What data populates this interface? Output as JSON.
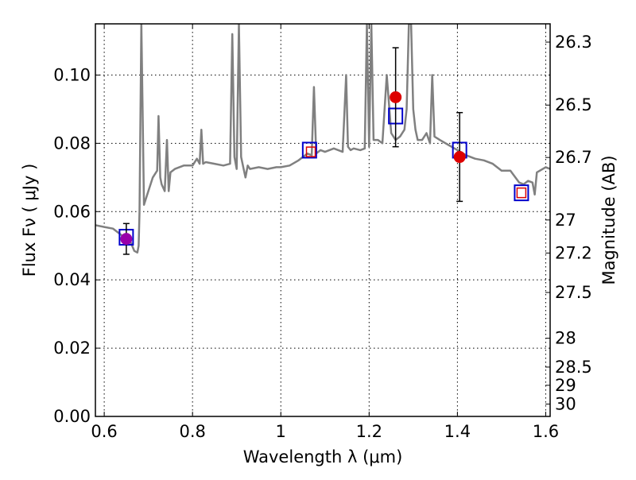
{
  "chart_data": {
    "type": "line",
    "xlabel": "Wavelength  λ (μm)",
    "ylabel": "Flux  Fν  ( μJy )",
    "y2label": "Magnitude (AB)",
    "xlim": [
      0.58,
      1.61
    ],
    "ylim": [
      0.0,
      0.115
    ],
    "x_ticks": [
      0.6,
      0.8,
      1.0,
      1.2,
      1.4,
      1.6
    ],
    "x_tick_labels": [
      "0.6",
      "0.8",
      "1",
      "1.2",
      "1.4",
      "1.6"
    ],
    "y_ticks": [
      0.0,
      0.02,
      0.04,
      0.06,
      0.08,
      0.1
    ],
    "y_tick_labels": [
      "0.00",
      "0.02",
      "0.04",
      "0.06",
      "0.08",
      "0.10"
    ],
    "mag_ticks": [
      26.3,
      26.5,
      26.7,
      27,
      27.2,
      27.5,
      28,
      28.5,
      29,
      30
    ],
    "mag_tick_labels": [
      "26.3",
      "26.5",
      "26.7",
      "27",
      "27.2",
      "27.5",
      "28",
      "28.5",
      "29",
      "30"
    ],
    "grid": true,
    "colors": {
      "model": "#808080",
      "observed": "#dd0000",
      "model_flux_box": "#0000cc",
      "predicted_box": "#dd0000",
      "error_bar": "#000000",
      "overlap_marker": "#9900aa"
    },
    "series": [
      {
        "kind": "model_spectrum",
        "x": [
          0.58,
          0.6,
          0.62,
          0.64,
          0.66,
          0.668,
          0.675,
          0.678,
          0.68,
          0.684,
          0.69,
          0.7,
          0.71,
          0.72,
          0.723,
          0.727,
          0.73,
          0.737,
          0.742,
          0.746,
          0.75,
          0.76,
          0.78,
          0.8,
          0.81,
          0.816,
          0.82,
          0.824,
          0.83,
          0.85,
          0.87,
          0.885,
          0.89,
          0.895,
          0.9,
          0.905,
          0.91,
          0.915,
          0.92,
          0.925,
          0.93,
          0.95,
          0.97,
          0.99,
          1.0,
          1.02,
          1.04,
          1.06,
          1.07,
          1.075,
          1.08,
          1.09,
          1.1,
          1.12,
          1.14,
          1.148,
          1.152,
          1.158,
          1.165,
          1.18,
          1.19,
          1.195,
          1.2,
          1.205,
          1.21,
          1.22,
          1.23,
          1.24,
          1.25,
          1.26,
          1.27,
          1.28,
          1.285,
          1.29,
          1.295,
          1.3,
          1.305,
          1.31,
          1.32,
          1.33,
          1.338,
          1.343,
          1.348,
          1.36,
          1.38,
          1.4,
          1.42,
          1.44,
          1.46,
          1.48,
          1.5,
          1.52,
          1.54,
          1.55,
          1.56,
          1.57,
          1.575,
          1.58,
          1.6,
          1.61
        ],
        "y": [
          0.056,
          0.0555,
          0.055,
          0.053,
          0.051,
          0.0485,
          0.048,
          0.05,
          0.06,
          0.115,
          0.062,
          0.066,
          0.07,
          0.072,
          0.088,
          0.07,
          0.068,
          0.066,
          0.081,
          0.066,
          0.0715,
          0.0725,
          0.0735,
          0.0735,
          0.0755,
          0.074,
          0.084,
          0.074,
          0.0745,
          0.074,
          0.0735,
          0.074,
          0.112,
          0.076,
          0.0725,
          0.115,
          0.076,
          0.073,
          0.07,
          0.0735,
          0.0725,
          0.073,
          0.0725,
          0.073,
          0.073,
          0.0735,
          0.075,
          0.077,
          0.0765,
          0.0965,
          0.077,
          0.078,
          0.0775,
          0.0785,
          0.0775,
          0.1,
          0.079,
          0.078,
          0.0785,
          0.078,
          0.0785,
          0.115,
          0.079,
          0.115,
          0.081,
          0.081,
          0.08,
          0.1,
          0.083,
          0.081,
          0.082,
          0.084,
          0.09,
          0.115,
          0.115,
          0.09,
          0.084,
          0.081,
          0.081,
          0.083,
          0.08,
          0.1,
          0.082,
          0.081,
          0.0795,
          0.078,
          0.0765,
          0.0755,
          0.075,
          0.074,
          0.072,
          0.072,
          0.0685,
          0.068,
          0.069,
          0.0685,
          0.065,
          0.0715,
          0.073,
          0.0725
        ]
      },
      {
        "kind": "observed_flux",
        "points": [
          {
            "x": 0.65,
            "y": 0.052,
            "yerr": 0.0045
          },
          {
            "x": 1.26,
            "y": 0.0935,
            "yerr": 0.0145
          },
          {
            "x": 1.405,
            "y": 0.076,
            "yerr": 0.013
          }
        ]
      },
      {
        "kind": "model_band_flux",
        "points": [
          {
            "x": 0.65,
            "y": 0.0525
          },
          {
            "x": 1.065,
            "y": 0.078
          },
          {
            "x": 1.26,
            "y": 0.088
          },
          {
            "x": 1.405,
            "y": 0.078
          },
          {
            "x": 1.545,
            "y": 0.0655
          }
        ]
      },
      {
        "kind": "predicted_band_flux",
        "points": [
          {
            "x": 1.068,
            "y": 0.0775
          },
          {
            "x": 1.545,
            "y": 0.0655
          }
        ]
      }
    ]
  }
}
